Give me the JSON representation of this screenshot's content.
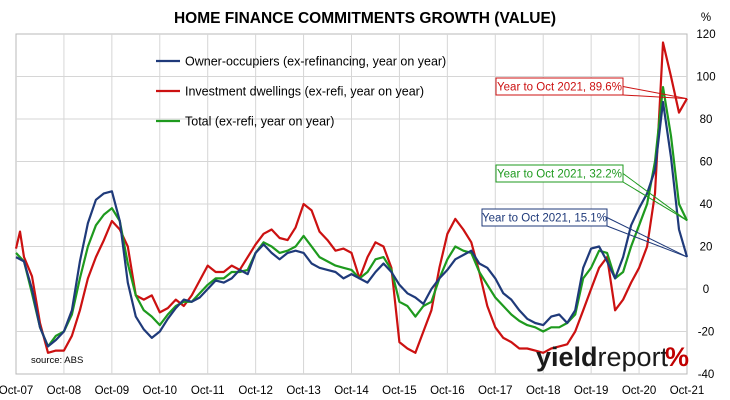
{
  "chart_data": {
    "type": "line",
    "title": "HOME FINANCE COMMITMENTS GROWTH (VALUE)",
    "ylabel": "%",
    "ylim": [
      -40,
      120
    ],
    "yticks": [
      -40,
      -20,
      0,
      20,
      40,
      60,
      80,
      100,
      120
    ],
    "xlim": [
      "Oct-07",
      "Oct-21"
    ],
    "x_tick_labels": [
      "Oct-07",
      "Oct-08",
      "Oct-09",
      "Oct-10",
      "Oct-11",
      "Oct-12",
      "Oct-13",
      "Oct-14",
      "Oct-15",
      "Oct-16",
      "Oct-17",
      "Oct-18",
      "Oct-19",
      "Oct-20",
      "Oct-21"
    ],
    "grid": true,
    "legend_position": "top-left",
    "source": "source: ABS",
    "brand": {
      "bold": "yield",
      "regular": "report",
      "symbol": "%"
    },
    "colors": {
      "owner": "#1f3a7a",
      "investment": "#cc1111",
      "total": "#1e9a1e"
    },
    "series": [
      {
        "name": "Owner-occupiers (ex-refinancing, year on year)",
        "color": "#1f3a7a",
        "points": [
          [
            "2007-10",
            15
          ],
          [
            "2007-12",
            13
          ],
          [
            "2008-02",
            0
          ],
          [
            "2008-04",
            -18
          ],
          [
            "2008-06",
            -27
          ],
          [
            "2008-08",
            -24
          ],
          [
            "2008-10",
            -20
          ],
          [
            "2008-12",
            -10
          ],
          [
            "2009-02",
            13
          ],
          [
            "2009-04",
            31
          ],
          [
            "2009-06",
            42
          ],
          [
            "2009-08",
            45
          ],
          [
            "2009-10",
            46
          ],
          [
            "2009-12",
            32
          ],
          [
            "2010-02",
            3
          ],
          [
            "2010-04",
            -13
          ],
          [
            "2010-06",
            -19
          ],
          [
            "2010-08",
            -23
          ],
          [
            "2010-10",
            -20
          ],
          [
            "2010-12",
            -14
          ],
          [
            "2011-02",
            -9
          ],
          [
            "2011-04",
            -5
          ],
          [
            "2011-06",
            -6
          ],
          [
            "2011-08",
            -4
          ],
          [
            "2011-10",
            0
          ],
          [
            "2011-12",
            4
          ],
          [
            "2012-02",
            3
          ],
          [
            "2012-04",
            5
          ],
          [
            "2012-06",
            9
          ],
          [
            "2012-08",
            7
          ],
          [
            "2012-10",
            17
          ],
          [
            "2012-12",
            21
          ],
          [
            "2013-02",
            17
          ],
          [
            "2013-04",
            14
          ],
          [
            "2013-06",
            17
          ],
          [
            "2013-08",
            18
          ],
          [
            "2013-10",
            17
          ],
          [
            "2013-12",
            12
          ],
          [
            "2014-02",
            10
          ],
          [
            "2014-04",
            9
          ],
          [
            "2014-06",
            8
          ],
          [
            "2014-08",
            5
          ],
          [
            "2014-10",
            7
          ],
          [
            "2014-12",
            5
          ],
          [
            "2015-02",
            3
          ],
          [
            "2015-04",
            8
          ],
          [
            "2015-06",
            12
          ],
          [
            "2015-08",
            8
          ],
          [
            "2015-10",
            2
          ],
          [
            "2015-12",
            -2
          ],
          [
            "2016-02",
            -4
          ],
          [
            "2016-04",
            -7
          ],
          [
            "2016-06",
            0
          ],
          [
            "2016-08",
            5
          ],
          [
            "2016-10",
            9
          ],
          [
            "2016-12",
            14
          ],
          [
            "2017-02",
            16
          ],
          [
            "2017-04",
            18
          ],
          [
            "2017-06",
            12
          ],
          [
            "2017-08",
            10
          ],
          [
            "2017-10",
            5
          ],
          [
            "2017-12",
            -2
          ],
          [
            "2018-02",
            -5
          ],
          [
            "2018-04",
            -10
          ],
          [
            "2018-06",
            -14
          ],
          [
            "2018-08",
            -16
          ],
          [
            "2018-10",
            -17
          ],
          [
            "2018-12",
            -13
          ],
          [
            "2019-02",
            -12
          ],
          [
            "2019-04",
            -16
          ],
          [
            "2019-06",
            -10
          ],
          [
            "2019-08",
            10
          ],
          [
            "2019-10",
            19
          ],
          [
            "2019-12",
            20
          ],
          [
            "2020-02",
            13
          ],
          [
            "2020-04",
            5
          ],
          [
            "2020-06",
            15
          ],
          [
            "2020-08",
            30
          ],
          [
            "2020-10",
            38
          ],
          [
            "2020-12",
            45
          ],
          [
            "2021-02",
            56
          ],
          [
            "2021-04",
            88
          ],
          [
            "2021-06",
            62
          ],
          [
            "2021-08",
            28
          ],
          [
            "2021-10",
            15.1
          ]
        ]
      },
      {
        "name": "Investment dwellings (ex-refi, year on year)",
        "color": "#cc1111",
        "points": [
          [
            "2007-10",
            19
          ],
          [
            "2007-11",
            27
          ],
          [
            "2007-12",
            15
          ],
          [
            "2008-02",
            6
          ],
          [
            "2008-04",
            -16
          ],
          [
            "2008-06",
            -30
          ],
          [
            "2008-08",
            -29
          ],
          [
            "2008-10",
            -29
          ],
          [
            "2008-12",
            -22
          ],
          [
            "2009-02",
            -10
          ],
          [
            "2009-04",
            5
          ],
          [
            "2009-06",
            15
          ],
          [
            "2009-08",
            23
          ],
          [
            "2009-10",
            32
          ],
          [
            "2009-12",
            28
          ],
          [
            "2010-02",
            20
          ],
          [
            "2010-04",
            -3
          ],
          [
            "2010-06",
            -5
          ],
          [
            "2010-08",
            -3
          ],
          [
            "2010-10",
            -11
          ],
          [
            "2010-12",
            -9
          ],
          [
            "2011-02",
            -5
          ],
          [
            "2011-04",
            -8
          ],
          [
            "2011-06",
            -3
          ],
          [
            "2011-08",
            4
          ],
          [
            "2011-10",
            11
          ],
          [
            "2011-12",
            8
          ],
          [
            "2012-02",
            8
          ],
          [
            "2012-04",
            11
          ],
          [
            "2012-06",
            9
          ],
          [
            "2012-10",
            21
          ],
          [
            "2012-12",
            26
          ],
          [
            "2013-02",
            28
          ],
          [
            "2013-04",
            24
          ],
          [
            "2013-06",
            23
          ],
          [
            "2013-08",
            29
          ],
          [
            "2013-10",
            40
          ],
          [
            "2013-12",
            37
          ],
          [
            "2014-02",
            27
          ],
          [
            "2014-04",
            23
          ],
          [
            "2014-06",
            18
          ],
          [
            "2014-08",
            19
          ],
          [
            "2014-10",
            17
          ],
          [
            "2014-12",
            5
          ],
          [
            "2015-02",
            15
          ],
          [
            "2015-04",
            22
          ],
          [
            "2015-06",
            20
          ],
          [
            "2015-08",
            10
          ],
          [
            "2015-10",
            -25
          ],
          [
            "2015-12",
            -28
          ],
          [
            "2016-02",
            -30
          ],
          [
            "2016-04",
            -20
          ],
          [
            "2016-06",
            -10
          ],
          [
            "2016-08",
            10
          ],
          [
            "2016-10",
            26
          ],
          [
            "2016-12",
            33
          ],
          [
            "2017-02",
            28
          ],
          [
            "2017-04",
            22
          ],
          [
            "2017-06",
            8
          ],
          [
            "2017-08",
            -8
          ],
          [
            "2017-10",
            -18
          ],
          [
            "2017-12",
            -23
          ],
          [
            "2018-02",
            -25
          ],
          [
            "2018-04",
            -28
          ],
          [
            "2018-06",
            -28
          ],
          [
            "2018-08",
            -29
          ],
          [
            "2018-10",
            -30
          ],
          [
            "2018-12",
            -28
          ],
          [
            "2019-02",
            -27
          ],
          [
            "2019-04",
            -26
          ],
          [
            "2019-06",
            -20
          ],
          [
            "2019-08",
            -10
          ],
          [
            "2019-10",
            0
          ],
          [
            "2019-12",
            10
          ],
          [
            "2020-02",
            15
          ],
          [
            "2020-04",
            -10
          ],
          [
            "2020-06",
            -5
          ],
          [
            "2020-08",
            3
          ],
          [
            "2020-10",
            10
          ],
          [
            "2020-12",
            20
          ],
          [
            "2021-02",
            45
          ],
          [
            "2021-03",
            80
          ],
          [
            "2021-04",
            116
          ],
          [
            "2021-06",
            100
          ],
          [
            "2021-08",
            83
          ],
          [
            "2021-10",
            89.6
          ]
        ]
      },
      {
        "name": "Total (ex-refi, year on year)",
        "color": "#1e9a1e",
        "points": [
          [
            "2007-10",
            17
          ],
          [
            "2007-12",
            13
          ],
          [
            "2008-02",
            -2
          ],
          [
            "2008-04",
            -18
          ],
          [
            "2008-06",
            -27
          ],
          [
            "2008-08",
            -22
          ],
          [
            "2008-10",
            -20
          ],
          [
            "2008-12",
            -12
          ],
          [
            "2009-02",
            5
          ],
          [
            "2009-04",
            20
          ],
          [
            "2009-06",
            30
          ],
          [
            "2009-08",
            35
          ],
          [
            "2009-10",
            38
          ],
          [
            "2009-12",
            32
          ],
          [
            "2010-02",
            12
          ],
          [
            "2010-04",
            -3
          ],
          [
            "2010-06",
            -10
          ],
          [
            "2010-08",
            -13
          ],
          [
            "2010-10",
            -17
          ],
          [
            "2010-12",
            -12
          ],
          [
            "2011-02",
            -8
          ],
          [
            "2011-04",
            -6
          ],
          [
            "2011-06",
            -6
          ],
          [
            "2011-08",
            -2
          ],
          [
            "2011-10",
            2
          ],
          [
            "2011-12",
            5
          ],
          [
            "2012-02",
            5
          ],
          [
            "2012-04",
            8
          ],
          [
            "2012-06",
            8
          ],
          [
            "2012-08",
            9
          ],
          [
            "2012-10",
            17
          ],
          [
            "2012-12",
            22
          ],
          [
            "2013-02",
            20
          ],
          [
            "2013-04",
            17
          ],
          [
            "2013-06",
            18
          ],
          [
            "2013-08",
            20
          ],
          [
            "2013-10",
            25
          ],
          [
            "2013-12",
            20
          ],
          [
            "2014-02",
            15
          ],
          [
            "2014-04",
            13
          ],
          [
            "2014-06",
            11
          ],
          [
            "2014-08",
            10
          ],
          [
            "2014-10",
            9
          ],
          [
            "2014-12",
            5
          ],
          [
            "2015-02",
            8
          ],
          [
            "2015-04",
            14
          ],
          [
            "2015-06",
            15
          ],
          [
            "2015-08",
            9
          ],
          [
            "2015-10",
            -6
          ],
          [
            "2015-12",
            -8
          ],
          [
            "2016-02",
            -13
          ],
          [
            "2016-04",
            -8
          ],
          [
            "2016-06",
            -6
          ],
          [
            "2016-08",
            5
          ],
          [
            "2016-10",
            14
          ],
          [
            "2016-12",
            20
          ],
          [
            "2017-02",
            18
          ],
          [
            "2017-04",
            17
          ],
          [
            "2017-06",
            8
          ],
          [
            "2017-08",
            2
          ],
          [
            "2017-10",
            -4
          ],
          [
            "2017-12",
            -8
          ],
          [
            "2018-02",
            -12
          ],
          [
            "2018-04",
            -15
          ],
          [
            "2018-06",
            -17
          ],
          [
            "2018-08",
            -18
          ],
          [
            "2018-10",
            -20
          ],
          [
            "2018-12",
            -18
          ],
          [
            "2019-02",
            -18
          ],
          [
            "2019-04",
            -16
          ],
          [
            "2019-06",
            -12
          ],
          [
            "2019-08",
            5
          ],
          [
            "2019-10",
            10
          ],
          [
            "2019-12",
            18
          ],
          [
            "2020-02",
            17
          ],
          [
            "2020-04",
            5
          ],
          [
            "2020-06",
            8
          ],
          [
            "2020-08",
            20
          ],
          [
            "2020-10",
            30
          ],
          [
            "2020-12",
            40
          ],
          [
            "2021-02",
            60
          ],
          [
            "2021-04",
            95
          ],
          [
            "2021-06",
            72
          ],
          [
            "2021-08",
            40
          ],
          [
            "2021-10",
            32.2
          ]
        ]
      }
    ],
    "annotations": [
      {
        "text": "Year to Oct 2021, 89.6%",
        "series": 1,
        "color": "#cc1111"
      },
      {
        "text": "Year to Oct 2021, 32.2%",
        "series": 2,
        "color": "#1e9a1e"
      },
      {
        "text": "Year to Oct 2021, 15.1%",
        "series": 0,
        "color": "#1f3a7a"
      }
    ]
  }
}
